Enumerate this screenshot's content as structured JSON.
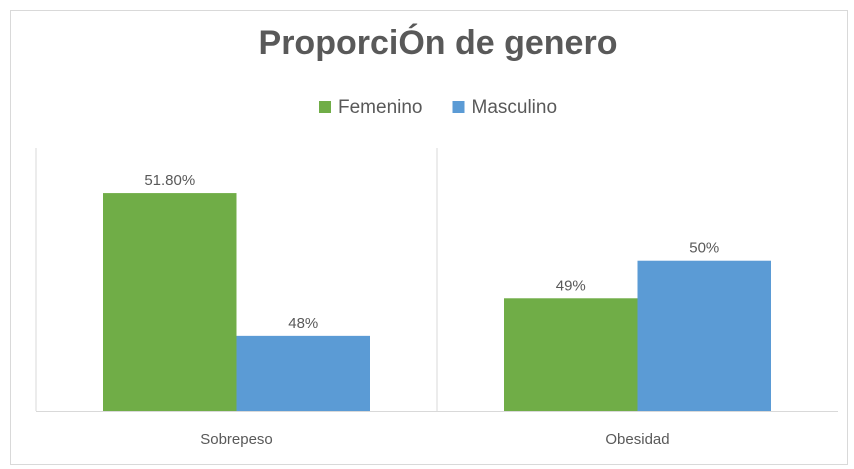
{
  "chart_data": {
    "type": "bar",
    "title": "ProporciÓn de genero",
    "categories": [
      "Sobrepeso",
      "Obesidad"
    ],
    "series": [
      {
        "name": "Femenino",
        "color": "#70ad47",
        "values": [
          51.8,
          49
        ],
        "value_labels": [
          "51.80%",
          "49%"
        ]
      },
      {
        "name": "Masculino",
        "color": "#5b9bd5",
        "values": [
          48,
          50
        ],
        "value_labels": [
          "48%",
          "50%"
        ]
      }
    ],
    "ylim": [
      46,
      53
    ],
    "legend": "top"
  }
}
